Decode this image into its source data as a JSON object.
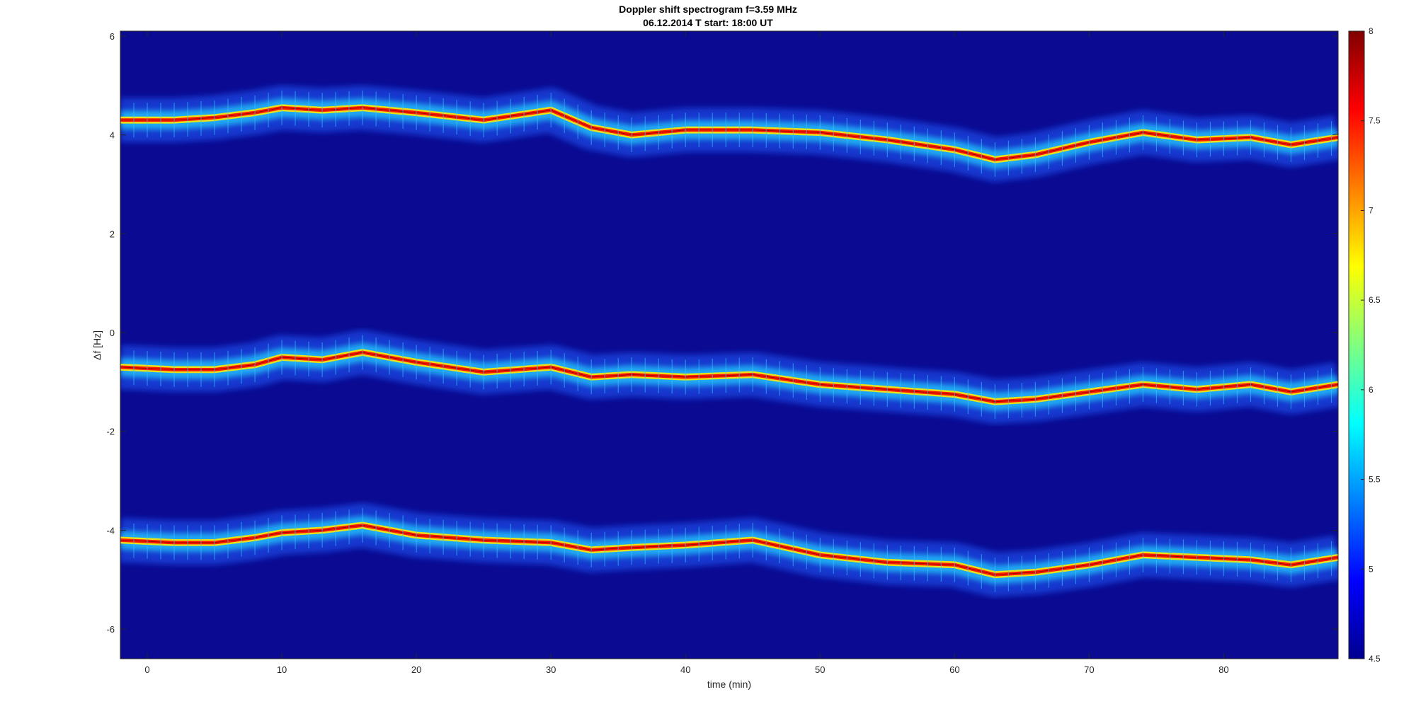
{
  "chart_data": {
    "type": "heatmap",
    "title": "Doppler shift spectrogram f=3.59 MHz",
    "subtitle": "06.12.2014   T start: 18:00 UT",
    "xlabel": "time (min)",
    "ylabel": "Δf [Hz]",
    "xlim": [
      -2,
      88.5
    ],
    "ylim": [
      -6.6,
      6.1
    ],
    "xticks": [
      0,
      10,
      20,
      30,
      40,
      50,
      60,
      70,
      80
    ],
    "xtick_labels": [
      "0",
      "10",
      "20",
      "30",
      "40",
      "50",
      "60",
      "70",
      "80"
    ],
    "yticks": [
      6,
      4,
      2,
      0,
      -2,
      -4,
      -6
    ],
    "ytick_labels": [
      "6",
      "4",
      "2",
      "0",
      "-2",
      "-4",
      "-6"
    ],
    "colorbar": {
      "colormap": "jet",
      "clim": [
        4.5,
        8
      ],
      "ticks": [
        8,
        7.5,
        7,
        6.5,
        6,
        5.5,
        5,
        4.5
      ],
      "tick_labels": [
        "8",
        "7.5",
        "7",
        "6.5",
        "6",
        "5.5",
        "5",
        "4.5"
      ]
    },
    "background_color": "#0a0a92",
    "series": [
      {
        "x": [
          -2,
          2,
          5,
          8,
          10,
          13,
          16,
          20,
          25,
          30,
          33,
          36,
          40,
          45,
          50,
          55,
          60,
          63,
          66,
          70,
          74,
          78,
          82,
          85,
          88.5
        ],
        "y": [
          4.3,
          4.3,
          4.35,
          4.45,
          4.55,
          4.5,
          4.55,
          4.45,
          4.3,
          4.5,
          4.15,
          4.0,
          4.1,
          4.1,
          4.05,
          3.9,
          3.7,
          3.5,
          3.6,
          3.85,
          4.05,
          3.9,
          3.95,
          3.8,
          3.95
        ]
      },
      {
        "x": [
          -2,
          2,
          5,
          8,
          10,
          13,
          16,
          20,
          25,
          30,
          33,
          36,
          40,
          45,
          50,
          55,
          60,
          63,
          66,
          70,
          74,
          78,
          82,
          85,
          88.5
        ],
        "y": [
          -0.7,
          -0.75,
          -0.75,
          -0.65,
          -0.5,
          -0.55,
          -0.4,
          -0.6,
          -0.8,
          -0.7,
          -0.9,
          -0.85,
          -0.9,
          -0.85,
          -1.05,
          -1.15,
          -1.25,
          -1.4,
          -1.35,
          -1.2,
          -1.05,
          -1.15,
          -1.05,
          -1.2,
          -1.05
        ]
      },
      {
        "x": [
          -2,
          2,
          5,
          8,
          10,
          13,
          16,
          20,
          25,
          30,
          33,
          36,
          40,
          45,
          50,
          55,
          60,
          63,
          66,
          70,
          74,
          78,
          82,
          85,
          88.5
        ],
        "y": [
          -4.2,
          -4.25,
          -4.25,
          -4.15,
          -4.05,
          -4.0,
          -3.9,
          -4.1,
          -4.2,
          -4.25,
          -4.4,
          -4.35,
          -4.3,
          -4.2,
          -4.5,
          -4.65,
          -4.7,
          -4.9,
          -4.85,
          -4.7,
          -4.5,
          -4.55,
          -4.6,
          -4.7,
          -4.55
        ]
      }
    ]
  }
}
